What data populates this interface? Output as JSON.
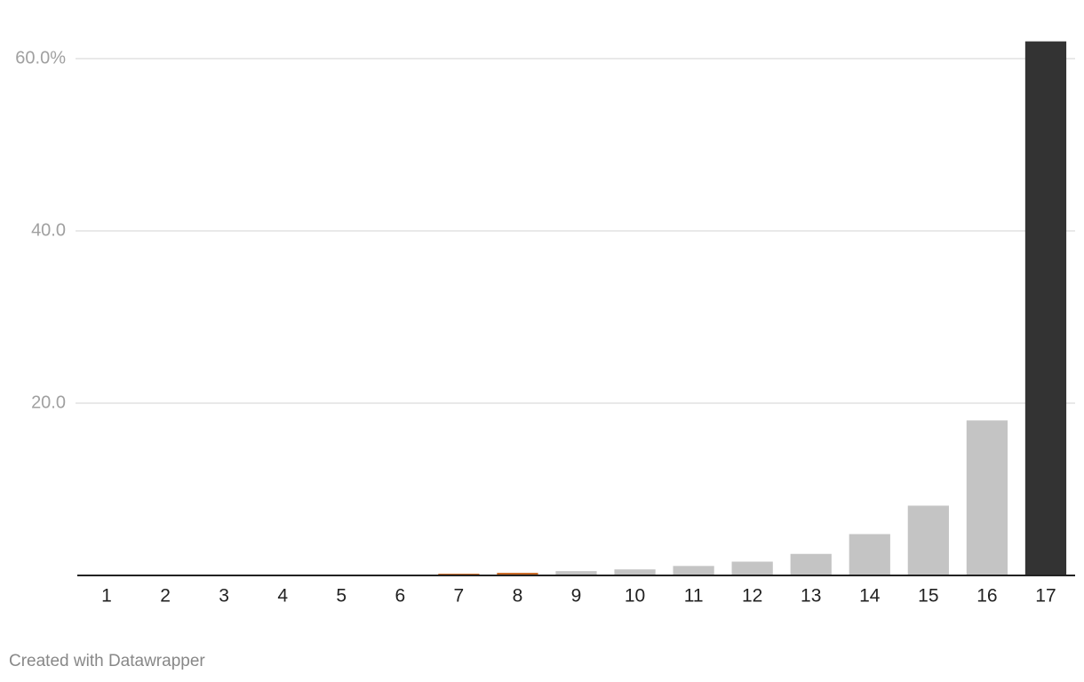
{
  "chart_data": {
    "type": "bar",
    "categories": [
      "1",
      "2",
      "3",
      "4",
      "5",
      "6",
      "7",
      "8",
      "9",
      "10",
      "11",
      "12",
      "13",
      "14",
      "15",
      "16",
      "17"
    ],
    "values": [
      0,
      0,
      0,
      0,
      0,
      0,
      0.2,
      0.3,
      0.5,
      0.7,
      1.1,
      1.6,
      2.5,
      4.8,
      8.1,
      18,
      62
    ],
    "colors": [
      "#c4c4c4",
      "#c4c4c4",
      "#c4c4c4",
      "#c4c4c4",
      "#c4c4c4",
      "#c4c4c4",
      "#c8641e",
      "#c8641e",
      "#c4c4c4",
      "#c4c4c4",
      "#c4c4c4",
      "#c4c4c4",
      "#c4c4c4",
      "#c4c4c4",
      "#c4c4c4",
      "#c4c4c4",
      "#333333"
    ],
    "ylim": [
      0,
      62
    ],
    "yticks": [
      {
        "value": 20,
        "label": "20.0"
      },
      {
        "value": 40,
        "label": "40.0"
      },
      {
        "value": 60,
        "label": "60.0%"
      }
    ],
    "grid": true,
    "footer": "Created with Datawrapper"
  }
}
